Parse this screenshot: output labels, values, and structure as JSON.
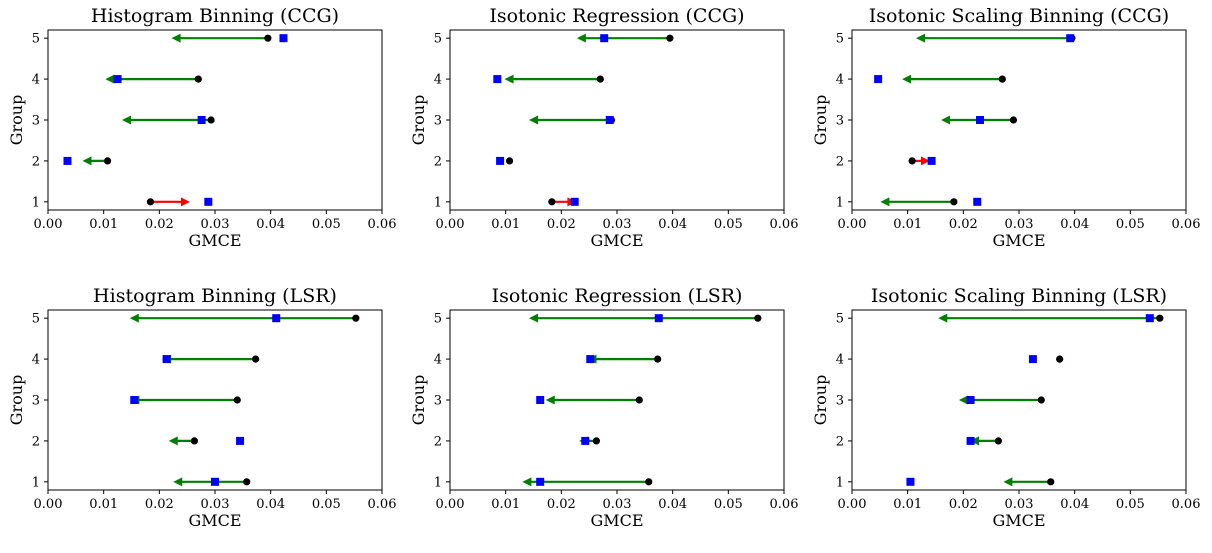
{
  "chart_data": [
    {
      "type": "scatter",
      "title": "Histogram Binning (CCG)",
      "xlabel": "GMCE",
      "ylabel": "Group",
      "xlim": [
        0.0,
        0.06
      ],
      "ylim": [
        0.8,
        5.2
      ],
      "xticks": [
        "0.00",
        "0.01",
        "0.02",
        "0.03",
        "0.04",
        "0.05",
        "0.06"
      ],
      "yticks": [
        "1",
        "2",
        "3",
        "4",
        "5"
      ],
      "series": [
        {
          "group": 1,
          "start": 0.0184,
          "end": 0.0255,
          "square": 0.0288,
          "arrow_color": "#ff0000"
        },
        {
          "group": 2,
          "start": 0.0107,
          "end": 0.0062,
          "square": 0.0035,
          "arrow_color": "#008000"
        },
        {
          "group": 3,
          "start": 0.0293,
          "end": 0.0133,
          "square": 0.0276,
          "arrow_color": "#008000"
        },
        {
          "group": 4,
          "start": 0.027,
          "end": 0.0103,
          "square": 0.0125,
          "arrow_color": "#008000"
        },
        {
          "group": 5,
          "start": 0.0395,
          "end": 0.0222,
          "square": 0.0423,
          "arrow_color": "#008000"
        }
      ]
    },
    {
      "type": "scatter",
      "title": "Isotonic Regression (CCG)",
      "xlabel": "GMCE",
      "ylabel": "Group",
      "xlim": [
        0.0,
        0.06
      ],
      "ylim": [
        0.8,
        5.2
      ],
      "xticks": [
        "0.00",
        "0.01",
        "0.02",
        "0.03",
        "0.04",
        "0.05",
        "0.06"
      ],
      "yticks": [
        "1",
        "2",
        "3",
        "4",
        "5"
      ],
      "series": [
        {
          "group": 1,
          "start": 0.0183,
          "end": 0.0227,
          "square": 0.0224,
          "arrow_color": "#ff0000"
        },
        {
          "group": 2,
          "start": 0.0107,
          "end": 0.0108,
          "square": 0.009,
          "arrow_color": "#008000"
        },
        {
          "group": 3,
          "start": 0.029,
          "end": 0.0142,
          "square": 0.0287,
          "arrow_color": "#008000"
        },
        {
          "group": 4,
          "start": 0.027,
          "end": 0.0098,
          "square": 0.0085,
          "arrow_color": "#008000"
        },
        {
          "group": 5,
          "start": 0.0395,
          "end": 0.0228,
          "square": 0.0277,
          "arrow_color": "#008000"
        }
      ]
    },
    {
      "type": "scatter",
      "title": "Isotonic Scaling Binning (CCG)",
      "xlabel": "GMCE",
      "ylabel": "Group",
      "xlim": [
        0.0,
        0.06
      ],
      "ylim": [
        0.8,
        5.2
      ],
      "xticks": [
        "0.00",
        "0.01",
        "0.02",
        "0.03",
        "0.04",
        "0.05",
        "0.06"
      ],
      "yticks": [
        "1",
        "2",
        "3",
        "4",
        "5"
      ],
      "series": [
        {
          "group": 1,
          "start": 0.0183,
          "end": 0.0051,
          "square": 0.0225,
          "arrow_color": "#008000"
        },
        {
          "group": 2,
          "start": 0.0108,
          "end": 0.014,
          "square": 0.0143,
          "arrow_color": "#ff0000"
        },
        {
          "group": 3,
          "start": 0.029,
          "end": 0.016,
          "square": 0.023,
          "arrow_color": "#008000"
        },
        {
          "group": 4,
          "start": 0.027,
          "end": 0.009,
          "square": 0.0047,
          "arrow_color": "#008000"
        },
        {
          "group": 5,
          "start": 0.0395,
          "end": 0.0115,
          "square": 0.0392,
          "arrow_color": "#008000"
        }
      ]
    },
    {
      "type": "scatter",
      "title": "Histogram Binning (LSR)",
      "xlabel": "GMCE",
      "ylabel": "Group",
      "xlim": [
        0.0,
        0.06
      ],
      "ylim": [
        0.8,
        5.2
      ],
      "xticks": [
        "0.00",
        "0.01",
        "0.02",
        "0.03",
        "0.04",
        "0.05",
        "0.06"
      ],
      "yticks": [
        "1",
        "2",
        "3",
        "4",
        "5"
      ],
      "series": [
        {
          "group": 1,
          "start": 0.0357,
          "end": 0.0225,
          "square": 0.03,
          "arrow_color": "#008000"
        },
        {
          "group": 2,
          "start": 0.0263,
          "end": 0.0217,
          "square": 0.0345,
          "arrow_color": "#008000"
        },
        {
          "group": 3,
          "start": 0.034,
          "end": 0.0148,
          "square": 0.0155,
          "arrow_color": "#008000"
        },
        {
          "group": 4,
          "start": 0.0373,
          "end": 0.0205,
          "square": 0.0213,
          "arrow_color": "#008000"
        },
        {
          "group": 5,
          "start": 0.0553,
          "end": 0.0147,
          "square": 0.041,
          "arrow_color": "#008000"
        }
      ]
    },
    {
      "type": "scatter",
      "title": "Isotonic Regression (LSR)",
      "xlabel": "GMCE",
      "ylabel": "Group",
      "xlim": [
        0.0,
        0.06
      ],
      "ylim": [
        0.8,
        5.2
      ],
      "xticks": [
        "0.00",
        "0.01",
        "0.02",
        "0.03",
        "0.04",
        "0.05",
        "0.06"
      ],
      "yticks": [
        "1",
        "2",
        "3",
        "4",
        "5"
      ],
      "series": [
        {
          "group": 1,
          "start": 0.0357,
          "end": 0.013,
          "square": 0.0162,
          "arrow_color": "#008000"
        },
        {
          "group": 2,
          "start": 0.0263,
          "end": 0.0232,
          "square": 0.0243,
          "arrow_color": "#008000"
        },
        {
          "group": 3,
          "start": 0.034,
          "end": 0.0172,
          "square": 0.0162,
          "arrow_color": "#008000"
        },
        {
          "group": 4,
          "start": 0.0373,
          "end": 0.0247,
          "square": 0.0252,
          "arrow_color": "#008000"
        },
        {
          "group": 5,
          "start": 0.0553,
          "end": 0.0142,
          "square": 0.0375,
          "arrow_color": "#008000"
        }
      ]
    },
    {
      "type": "scatter",
      "title": "Isotonic Scaling Binning (LSR)",
      "xlabel": "GMCE",
      "ylabel": "Group",
      "xlim": [
        0.0,
        0.06
      ],
      "ylim": [
        0.8,
        5.2
      ],
      "xticks": [
        "0.00",
        "0.01",
        "0.02",
        "0.03",
        "0.04",
        "0.05",
        "0.06"
      ],
      "yticks": [
        "1",
        "2",
        "3",
        "4",
        "5"
      ],
      "series": [
        {
          "group": 1,
          "start": 0.0357,
          "end": 0.0272,
          "square": 0.0105,
          "arrow_color": "#008000"
        },
        {
          "group": 2,
          "start": 0.0263,
          "end": 0.0212,
          "square": 0.0213,
          "arrow_color": "#008000"
        },
        {
          "group": 3,
          "start": 0.034,
          "end": 0.0192,
          "square": 0.0213,
          "arrow_color": "#008000"
        },
        {
          "group": 4,
          "start": 0.0373,
          "end": 0.038,
          "square": 0.0325,
          "arrow_color": "#ff0000"
        },
        {
          "group": 5,
          "start": 0.0553,
          "end": 0.0155,
          "square": 0.0535,
          "arrow_color": "#008000"
        }
      ]
    }
  ],
  "colors": {
    "improve_arrow": "#008000",
    "worsen_arrow": "#ff0000",
    "start_marker": "#000000",
    "square_marker": "#0000ff"
  }
}
